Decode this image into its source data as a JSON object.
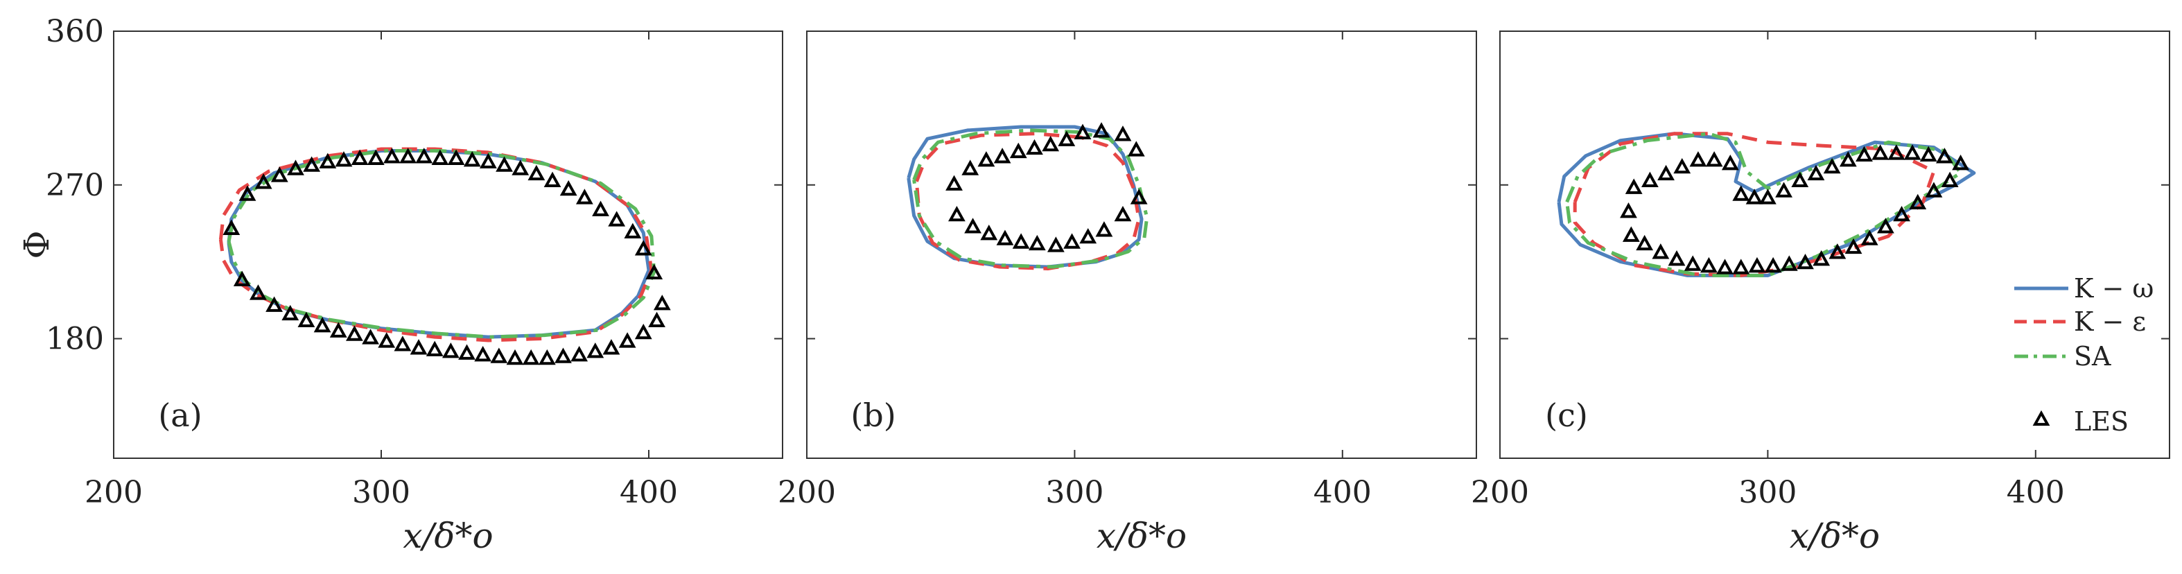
{
  "chart_data": [
    {
      "type": "line",
      "panel_label": "(a)",
      "xlabel": "x/δ*o",
      "ylabel": "Φ",
      "xlim": [
        200,
        450
      ],
      "ylim": [
        110,
        360
      ],
      "xticks": [
        "200",
        "300",
        "400"
      ],
      "yticks": [
        "360",
        "270",
        "180"
      ],
      "grid": false,
      "series": [
        {
          "name": "K − ω",
          "color": "#4f81bd",
          "dash": "solid",
          "x": [
            243,
            244,
            250,
            260,
            280,
            300,
            320,
            340,
            360,
            380,
            392,
            398,
            400,
            396,
            390,
            380,
            360,
            340,
            320,
            300,
            280,
            265,
            255,
            248,
            244,
            243
          ],
          "y": [
            236,
            250,
            266,
            277,
            286,
            290,
            290,
            288,
            283,
            272,
            258,
            242,
            220,
            205,
            195,
            185,
            182,
            181,
            183,
            186,
            191,
            197,
            205,
            214,
            225,
            236
          ]
        },
        {
          "name": "K − ε",
          "color": "#e64646",
          "dash": "dashed",
          "x": [
            240,
            241,
            247,
            258,
            280,
            300,
            320,
            340,
            360,
            380,
            393,
            399,
            401,
            397,
            390,
            380,
            360,
            340,
            320,
            300,
            280,
            264,
            253,
            245,
            241,
            240
          ],
          "y": [
            238,
            252,
            267,
            278,
            287,
            291,
            291,
            289,
            283,
            272,
            257,
            241,
            220,
            205,
            194,
            184,
            180,
            179,
            181,
            185,
            191,
            198,
            206,
            215,
            226,
            238
          ]
        },
        {
          "name": "SA",
          "color": "#5cb85c",
          "dash": "dashdot",
          "x": [
            243,
            245,
            251,
            262,
            282,
            302,
            322,
            342,
            362,
            382,
            395,
            401,
            402,
            398,
            391,
            381,
            361,
            341,
            321,
            301,
            281,
            266,
            256,
            249,
            245,
            243
          ],
          "y": [
            237,
            251,
            266,
            277,
            286,
            290,
            290,
            288,
            282,
            271,
            256,
            240,
            219,
            204,
            194,
            185,
            182,
            181,
            183,
            186,
            191,
            197,
            205,
            214,
            225,
            237
          ]
        },
        {
          "name": "LES",
          "color": "#000000",
          "dash": "markers",
          "x": [
            244,
            250,
            256,
            262,
            268,
            274,
            280,
            286,
            292,
            298,
            304,
            310,
            316,
            322,
            328,
            334,
            340,
            346,
            352,
            358,
            364,
            370,
            376,
            382,
            388,
            394,
            398,
            402,
            405,
            403,
            398,
            392,
            386,
            380,
            374,
            368,
            362,
            356,
            350,
            344,
            338,
            332,
            326,
            320,
            314,
            308,
            302,
            296,
            290,
            284,
            278,
            272,
            266,
            260,
            254,
            248
          ],
          "y": [
            244,
            264,
            271,
            275,
            279,
            281,
            283,
            284,
            285,
            285,
            286,
            286,
            286,
            285,
            285,
            284,
            283,
            281,
            279,
            276,
            272,
            267,
            262,
            255,
            249,
            242,
            232,
            218,
            200,
            190,
            183,
            178,
            174,
            172,
            170,
            169,
            168,
            168,
            168,
            169,
            170,
            171,
            172,
            173,
            174,
            176,
            178,
            180,
            182,
            184,
            187,
            190,
            194,
            199,
            206,
            214
          ]
        }
      ]
    },
    {
      "type": "line",
      "panel_label": "(b)",
      "xlabel": "x/δ*o",
      "xlim": [
        200,
        450
      ],
      "ylim": [
        110,
        360
      ],
      "xticks": [
        "200",
        "300",
        "400"
      ],
      "grid": false,
      "series": [
        {
          "name": "K − ω",
          "color": "#4f81bd",
          "dash": "solid",
          "x": [
            238,
            240,
            245,
            260,
            280,
            300,
            312,
            318,
            322,
            325,
            324,
            318,
            308,
            290,
            270,
            255,
            245,
            240,
            238
          ],
          "y": [
            274,
            285,
            297,
            302,
            304,
            304,
            300,
            288,
            270,
            250,
            238,
            230,
            225,
            222,
            223,
            227,
            237,
            252,
            274
          ]
        },
        {
          "name": "K − ε",
          "color": "#e64646",
          "dash": "dashed",
          "x": [
            241,
            244,
            250,
            265,
            285,
            302,
            312,
            318,
            322,
            324,
            322,
            316,
            306,
            290,
            272,
            257,
            247,
            242,
            241
          ],
          "y": [
            272,
            284,
            294,
            299,
            300,
            298,
            293,
            283,
            268,
            250,
            238,
            230,
            225,
            221,
            222,
            226,
            236,
            252,
            272
          ]
        },
        {
          "name": "SA",
          "color": "#5cb85c",
          "dash": "dashdot",
          "x": [
            240,
            243,
            249,
            263,
            283,
            301,
            313,
            320,
            324,
            327,
            326,
            320,
            310,
            292,
            273,
            258,
            248,
            242,
            240
          ],
          "y": [
            273,
            285,
            295,
            300,
            302,
            301,
            297,
            286,
            270,
            251,
            239,
            231,
            226,
            222,
            223,
            227,
            237,
            252,
            273
          ]
        },
        {
          "name": "LES",
          "color": "#000000",
          "dash": "markers",
          "x": [
            255,
            261,
            267,
            273,
            279,
            285,
            291,
            297,
            303,
            310,
            318,
            323,
            324,
            318,
            311,
            305,
            299,
            293,
            286,
            280,
            274,
            268,
            262,
            256
          ],
          "y": [
            270,
            279,
            284,
            286,
            289,
            291,
            293,
            296,
            300,
            301,
            299,
            290,
            262,
            252,
            243,
            239,
            236,
            234,
            235,
            236,
            238,
            241,
            245,
            252
          ]
        }
      ]
    },
    {
      "type": "line",
      "panel_label": "(c)",
      "xlabel": "x/δ*o",
      "xlim": [
        200,
        450
      ],
      "ylim": [
        110,
        360
      ],
      "xticks": [
        "200",
        "300",
        "400"
      ],
      "grid": false,
      "legend_position": "bottom-right",
      "series": [
        {
          "name": "K − ω",
          "color": "#4f81bd",
          "dash": "solid",
          "x": [
            222,
            224,
            232,
            245,
            265,
            285,
            290,
            288,
            295,
            315,
            340,
            362,
            377,
            370,
            355,
            330,
            300,
            270,
            245,
            230,
            223,
            222
          ],
          "y": [
            260,
            275,
            287,
            296,
            300,
            297,
            285,
            272,
            266,
            280,
            295,
            292,
            277,
            270,
            258,
            235,
            217,
            217,
            225,
            235,
            247,
            260
          ]
        },
        {
          "name": "K − ε",
          "color": "#e64646",
          "dash": "dashed",
          "x": [
            228,
            233,
            245,
            265,
            285,
            300,
            320,
            345,
            362,
            358,
            345,
            330,
            310,
            290,
            270,
            250,
            235,
            228,
            228
          ],
          "y": [
            260,
            280,
            294,
            300,
            300,
            295,
            293,
            291,
            278,
            260,
            240,
            232,
            222,
            217,
            218,
            223,
            236,
            248,
            260
          ]
        },
        {
          "name": "SA",
          "color": "#5cb85c",
          "dash": "dashdot",
          "x": [
            225,
            229,
            238,
            255,
            278,
            288,
            292,
            300,
            320,
            345,
            366,
            372,
            360,
            340,
            318,
            300,
            275,
            250,
            233,
            226,
            225
          ],
          "y": [
            260,
            275,
            288,
            296,
            300,
            295,
            278,
            268,
            282,
            295,
            290,
            277,
            265,
            245,
            228,
            217,
            217,
            225,
            236,
            248,
            260
          ]
        },
        {
          "name": "LES",
          "color": "#000000",
          "dash": "markers",
          "x": [
            250,
            256,
            262,
            268,
            274,
            280,
            286,
            290,
            295,
            300,
            306,
            312,
            318,
            324,
            330,
            336,
            342,
            348,
            354,
            360,
            366,
            372,
            368,
            362,
            356,
            350,
            344,
            338,
            332,
            326,
            320,
            314,
            308,
            302,
            296,
            290,
            284,
            278,
            272,
            266,
            260,
            254,
            249,
            248
          ],
          "y": [
            268,
            272,
            276,
            280,
            284,
            284,
            282,
            264,
            262,
            262,
            266,
            272,
            276,
            280,
            284,
            287,
            288,
            288,
            288,
            287,
            286,
            282,
            272,
            266,
            259,
            252,
            245,
            238,
            233,
            230,
            226,
            224,
            223,
            222,
            222,
            221,
            221,
            222,
            223,
            226,
            230,
            235,
            240,
            254
          ]
        }
      ]
    }
  ],
  "legend": {
    "items": [
      {
        "label": "K − ω",
        "color": "#4f81bd",
        "dash": "solid"
      },
      {
        "label": "K − ε",
        "color": "#e64646",
        "dash": "dashed"
      },
      {
        "label": "SA",
        "color": "#5cb85c",
        "dash": "dashdot"
      },
      {
        "label": "LES",
        "color": "#000000",
        "dash": "markers"
      }
    ]
  }
}
